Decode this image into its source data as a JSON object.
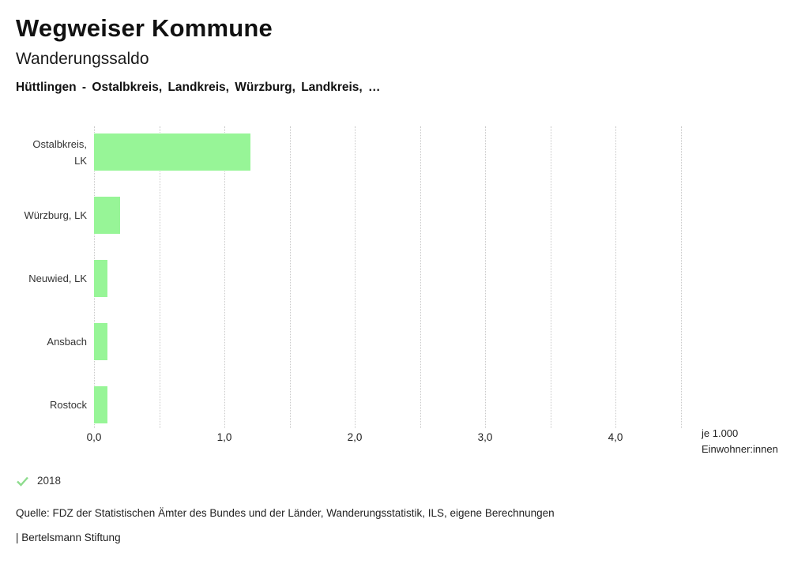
{
  "header": {
    "title": "Wegweiser Kommune",
    "subtitle": "Wanderungssaldo",
    "context": "Hüttlingen - Ostalbkreis, Landkreis, Würzburg, Landkreis, …"
  },
  "chart_data": {
    "type": "bar",
    "orientation": "horizontal",
    "categories": [
      "Ostalbkreis, LK",
      "Würzburg, LK",
      "Neuwied, LK",
      "Ansbach",
      "Rostock"
    ],
    "category_label_lines": [
      [
        "Ostalbkreis,",
        "LK"
      ],
      [
        "Würzburg, LK"
      ],
      [
        "Neuwied, LK"
      ],
      [
        "Ansbach"
      ],
      [
        "Rostock"
      ]
    ],
    "values": [
      1.2,
      0.2,
      0.1,
      0.1,
      0.1
    ],
    "xlim": [
      0,
      4.5
    ],
    "gridline_step": 0.5,
    "x_tick_values": [
      0,
      1,
      2,
      3,
      4
    ],
    "x_tick_labels": [
      "0,0",
      "1,0",
      "2,0",
      "3,0",
      "4,0"
    ],
    "unit_label_line1": "je 1.000",
    "unit_label_line2": "Einwohner:innen",
    "bar_color": "#97f597",
    "gridline_color": "#c9c9c9",
    "grid": true,
    "legend_position": "bottom-left"
  },
  "legend": {
    "check_icon": "check-icon",
    "check_color": "#8edc8e",
    "year": "2018"
  },
  "footer": {
    "source": "Quelle: FDZ der Statistischen Ämter des Bundes und der Länder, Wanderungsstatistik, ILS, eigene Berechnungen",
    "attribution": "| Bertelsmann Stiftung"
  }
}
